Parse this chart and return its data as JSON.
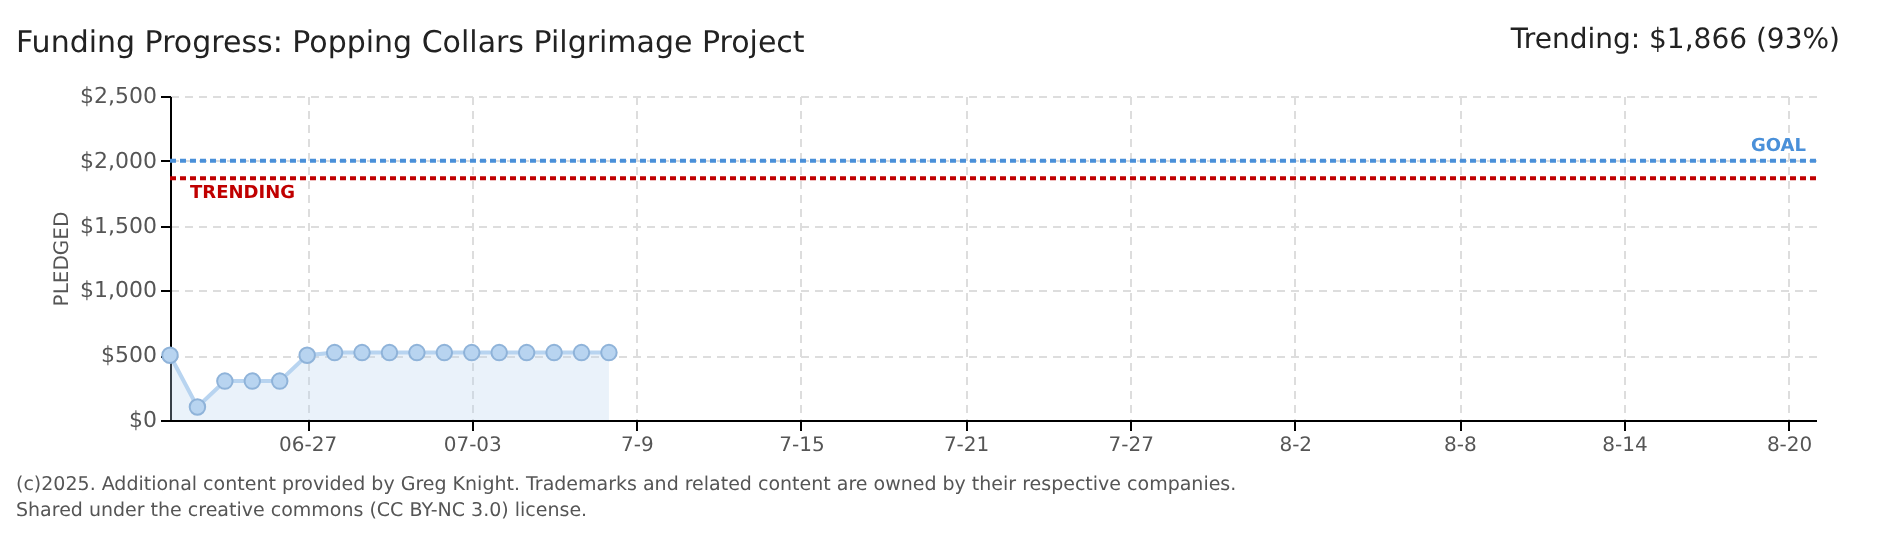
{
  "chart_data": {
    "type": "area",
    "title": "Funding Progress: Popping Collars Pilgrimage Project",
    "subtitle": "Trending: $1,866 (93%)",
    "ylabel": "PLEDGED",
    "x": [
      "2025-06-22",
      "2025-06-23",
      "2025-06-24",
      "2025-06-25",
      "2025-06-26",
      "2025-06-27",
      "2025-06-28",
      "2025-06-29",
      "2025-06-30",
      "2025-07-01",
      "2025-07-02",
      "2025-07-03",
      "2025-07-04",
      "2025-07-05",
      "2025-07-06",
      "2025-07-07",
      "2025-07-08"
    ],
    "series": [
      {
        "color": "#b8d4f0",
        "values": [
          500,
          100,
          300,
          300,
          300,
          500,
          520,
          520,
          520,
          520,
          520,
          520,
          520,
          520,
          520,
          520,
          520
        ]
      }
    ],
    "xlim": [
      "2025-06-22",
      "2025-08-21"
    ],
    "xticks": [
      {
        "value": "2025-06-27",
        "label": "06-27"
      },
      {
        "value": "2025-07-03",
        "label": "07-03"
      },
      {
        "value": "2025-07-09",
        "label": "7-9"
      },
      {
        "value": "2025-07-15",
        "label": "7-15"
      },
      {
        "value": "2025-07-21",
        "label": "7-21"
      },
      {
        "value": "2025-07-27",
        "label": "7-27"
      },
      {
        "value": "2025-08-02",
        "label": "8-2"
      },
      {
        "value": "2025-08-08",
        "label": "8-8"
      },
      {
        "value": "2025-08-14",
        "label": "8-14"
      },
      {
        "value": "2025-08-20",
        "label": "8-20"
      }
    ],
    "ylim": [
      0,
      2500
    ],
    "yticks": [
      {
        "value": 0,
        "label": "$0"
      },
      {
        "value": 500,
        "label": "$500"
      },
      {
        "value": 1000,
        "label": "$1,000"
      },
      {
        "value": 1500,
        "label": "$1,500"
      },
      {
        "value": 2000,
        "label": "$2,000"
      },
      {
        "value": 2500,
        "label": "$2,500"
      }
    ],
    "ref_lines": [
      {
        "axis": "y",
        "value": 2000,
        "label": "GOAL",
        "color": "#4a90d9",
        "line_style": "dotted"
      },
      {
        "axis": "y",
        "value": 1866,
        "label": "TRENDING",
        "color": "#c00000",
        "line_style": "dotted"
      }
    ],
    "grid": true,
    "marker": "circle",
    "annotations": [
      "(c)2025. Additional content provided by Greg Knight. Trademarks and related content are owned by their respective companies.",
      "Shared under the creative commons (CC BY-NC 3.0) license."
    ]
  }
}
